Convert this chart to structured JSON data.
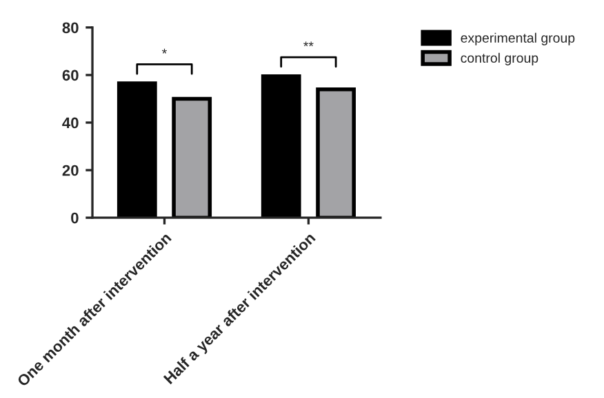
{
  "chart_data": {
    "type": "bar",
    "categories": [
      "One month after intervention",
      "Half a year after intervention"
    ],
    "series": [
      {
        "name": "experimental group",
        "color": "#000000",
        "values": [
          56.5,
          59.5
        ]
      },
      {
        "name": "control group",
        "color": "#a3a3a6",
        "values": [
          50.0,
          54.0
        ]
      }
    ],
    "ylim": [
      0,
      80
    ],
    "yticks": [
      0,
      20,
      40,
      60,
      80
    ],
    "grid": false,
    "legend": "top right",
    "annotations": [
      "*",
      "**"
    ]
  }
}
